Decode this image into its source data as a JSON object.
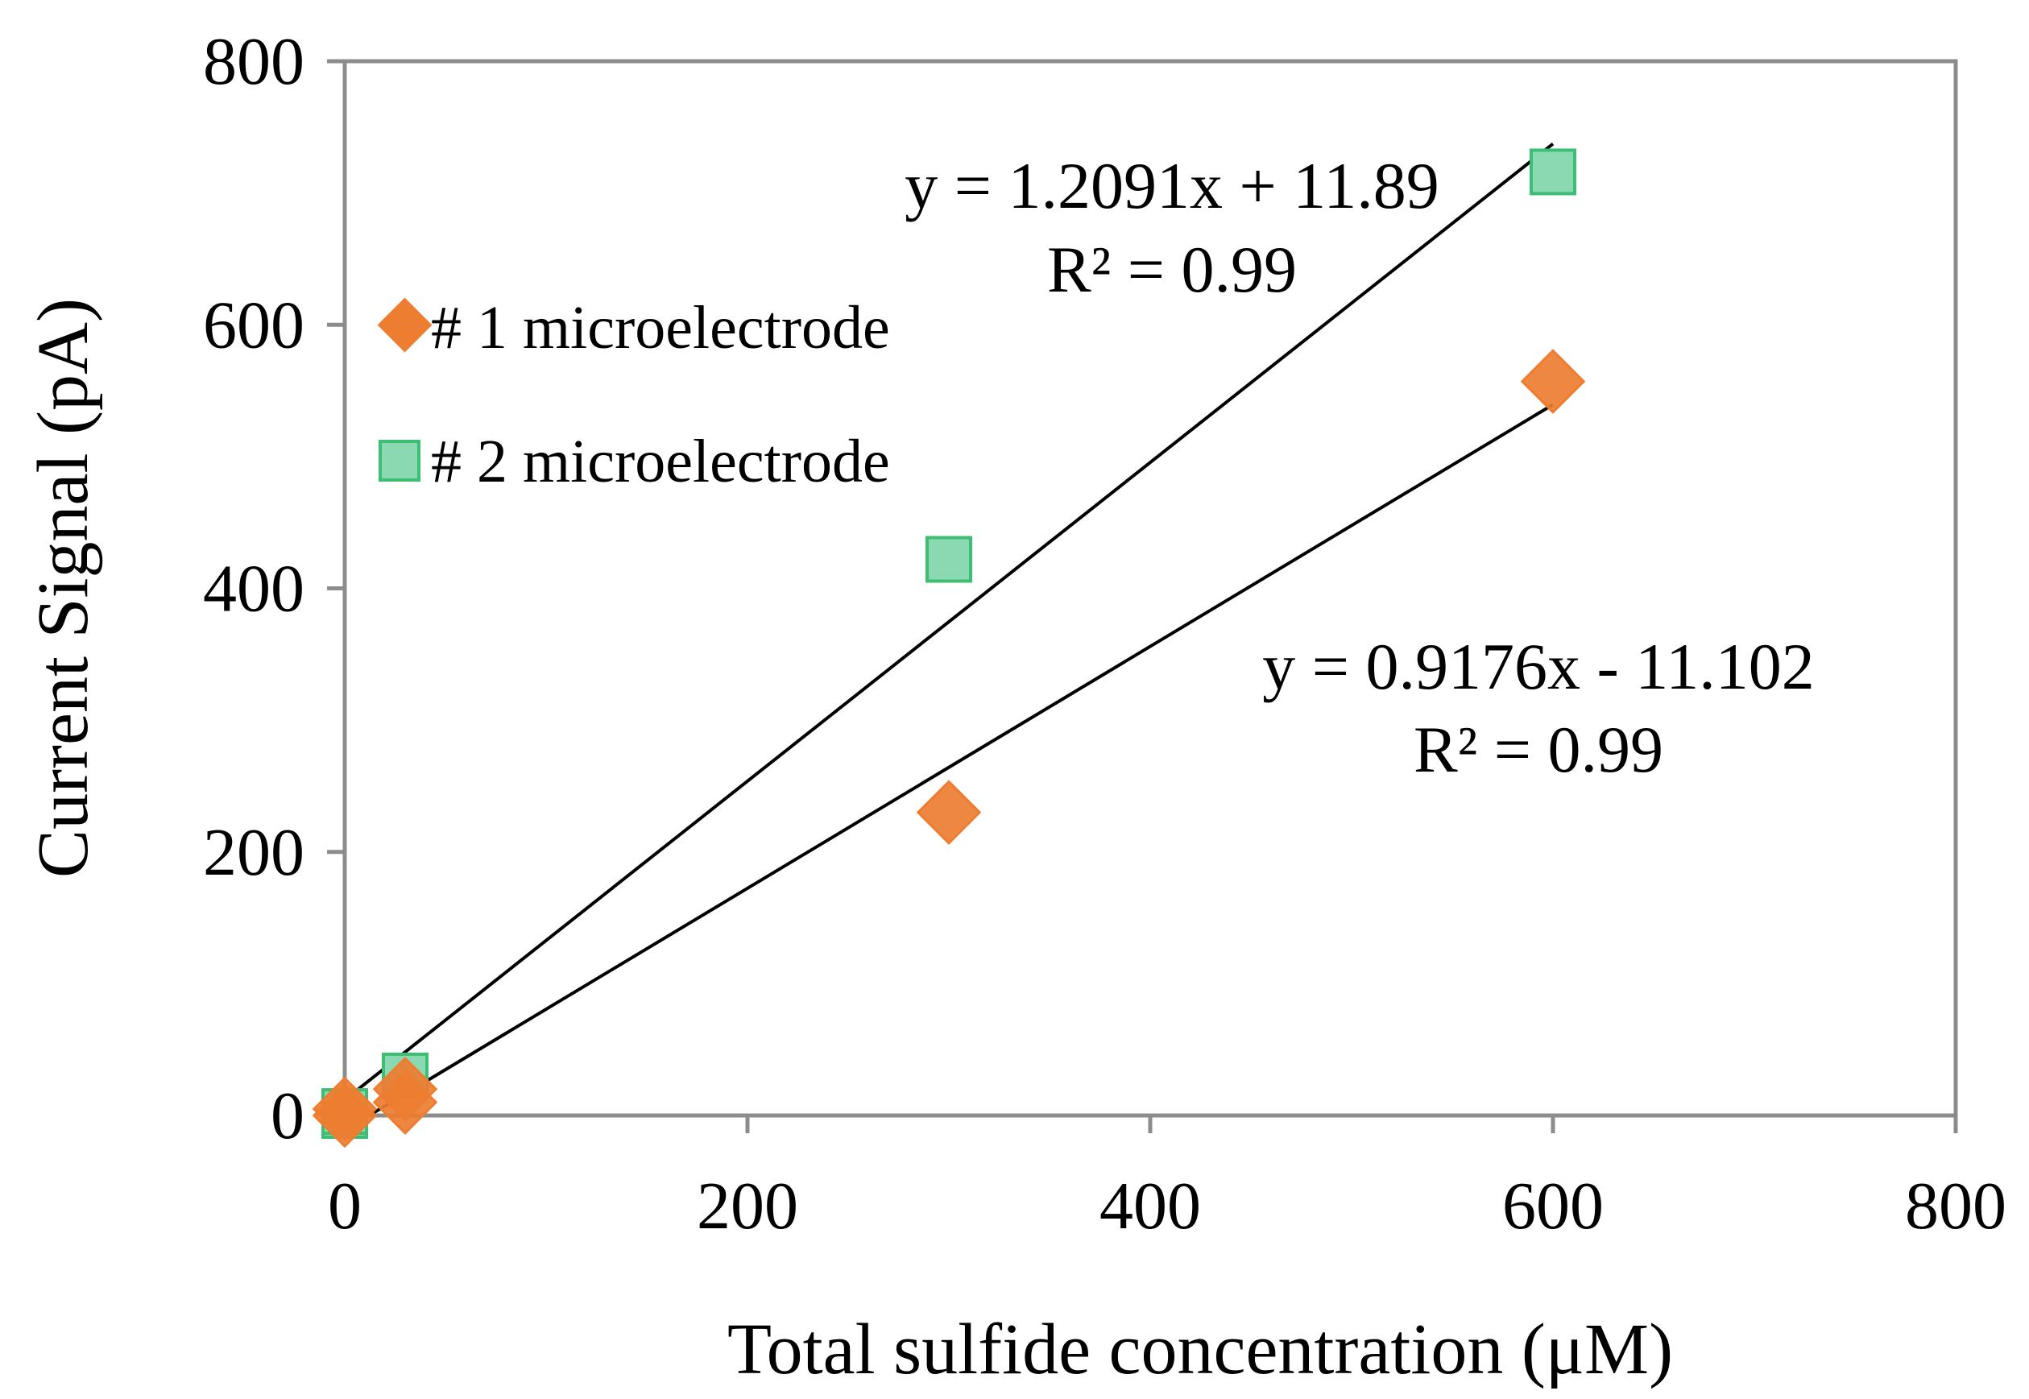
{
  "chart_data": {
    "type": "scatter",
    "title": "",
    "xlabel": "Total sulfide concentration (μM)",
    "ylabel": "Current Signal (pA)",
    "xlim": [
      0,
      800
    ],
    "ylim": [
      0,
      800
    ],
    "x_ticks": [
      0,
      200,
      400,
      600,
      800
    ],
    "y_ticks": [
      0,
      200,
      400,
      600,
      800
    ],
    "x_tick_labels": [
      "0",
      "200",
      "400",
      "600",
      "800"
    ],
    "y_tick_labels": [
      "0",
      "200",
      "400",
      "600",
      "800"
    ],
    "grid": false,
    "legend_position": "top-left",
    "series": [
      {
        "name": "# 1 microelectrode",
        "marker": "diamond",
        "color": "#ED7D31",
        "points": [
          {
            "x": 0,
            "y": 0
          },
          {
            "x": 0,
            "y": 5
          },
          {
            "x": 30,
            "y": 10
          },
          {
            "x": 30,
            "y": 20
          },
          {
            "x": 300,
            "y": 230
          },
          {
            "x": 600,
            "y": 557
          }
        ],
        "trendline": {
          "slope": 0.9176,
          "intercept": -11.102,
          "x_range": [
            12,
            600
          ],
          "equation": "y = 0.9176x - 11.102",
          "r2": "R² = 0.99"
        }
      },
      {
        "name": "# 2 microelectrode",
        "marker": "square",
        "color": "#8BD9B3",
        "edge_color": "#3DBE72",
        "points": [
          {
            "x": 0,
            "y": 0
          },
          {
            "x": 0,
            "y": 3
          },
          {
            "x": 30,
            "y": 30
          },
          {
            "x": 300,
            "y": 422
          },
          {
            "x": 600,
            "y": 716
          }
        ],
        "trendline": {
          "slope": 1.2091,
          "intercept": 11.89,
          "x_range": [
            0,
            600
          ],
          "equation": "y = 1.2091x + 11.89",
          "r2": "R² = 0.99"
        }
      }
    ]
  }
}
